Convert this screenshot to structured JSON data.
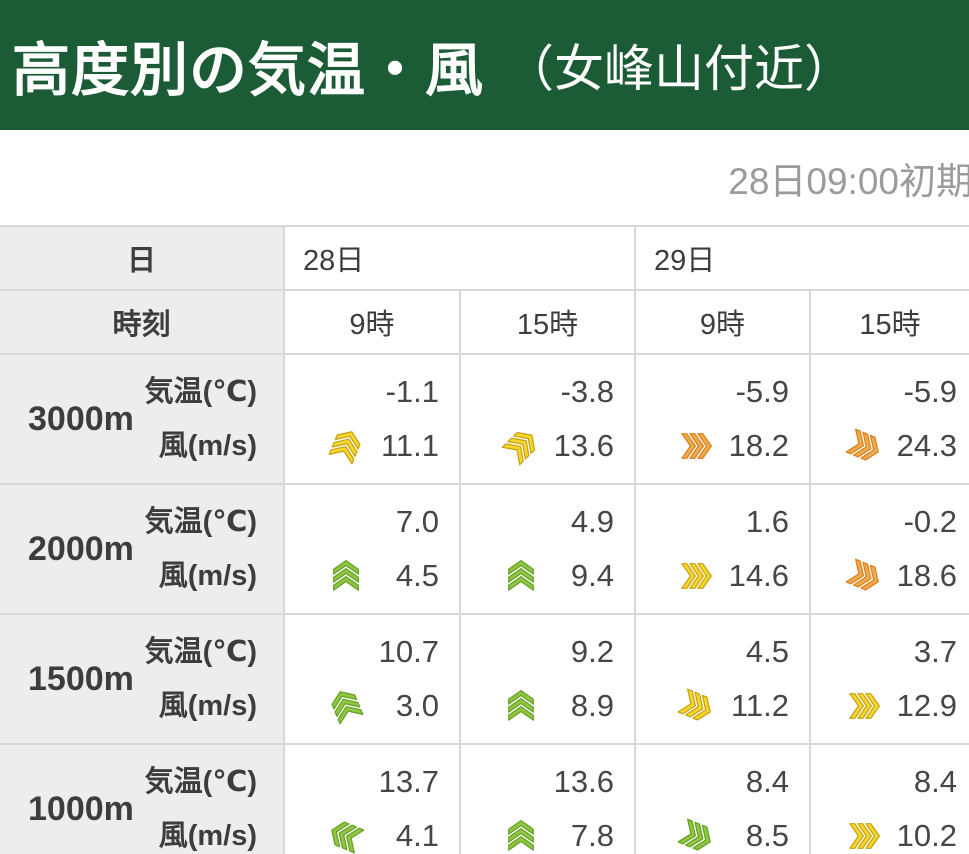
{
  "header": {
    "title": "高度別の気温・風",
    "area": "（女峰山付近）",
    "bg_color": "#1b5c36",
    "text_color": "#ffffff"
  },
  "init_time": "28日09:00初期",
  "table": {
    "day_label": "日",
    "time_label": "時刻",
    "days": [
      {
        "label": "28日"
      },
      {
        "label": "29日"
      }
    ],
    "times": [
      "9時",
      "15時",
      "9時",
      "15時"
    ],
    "temp_label": "気温(℃)",
    "wind_label": "風(m/s)",
    "rows": [
      {
        "altitude": "3000m",
        "temps": [
          "-1.1",
          "-3.8",
          "-5.9",
          "-5.9"
        ],
        "winds": [
          {
            "speed": "11.1",
            "color": "yellow",
            "dir": 22.5
          },
          {
            "speed": "13.6",
            "color": "yellow",
            "dir": 45
          },
          {
            "speed": "18.2",
            "color": "orange",
            "dir": 90
          },
          {
            "speed": "24.3",
            "color": "orange",
            "dir": 112.5
          }
        ]
      },
      {
        "altitude": "2000m",
        "temps": [
          "7.0",
          "4.9",
          "1.6",
          "-0.2"
        ],
        "winds": [
          {
            "speed": "4.5",
            "color": "green",
            "dir": 0
          },
          {
            "speed": "9.4",
            "color": "green",
            "dir": 0
          },
          {
            "speed": "14.6",
            "color": "yellow",
            "dir": 90
          },
          {
            "speed": "18.6",
            "color": "orange",
            "dir": 112.5
          }
        ]
      },
      {
        "altitude": "1500m",
        "temps": [
          "10.7",
          "9.2",
          "4.5",
          "3.7"
        ],
        "winds": [
          {
            "speed": "3.0",
            "color": "green",
            "dir": -22.5
          },
          {
            "speed": "8.9",
            "color": "green",
            "dir": 0
          },
          {
            "speed": "11.2",
            "color": "yellow",
            "dir": 112.5
          },
          {
            "speed": "12.9",
            "color": "yellow",
            "dir": 90
          }
        ]
      },
      {
        "altitude": "1000m",
        "temps": [
          "13.7",
          "13.6",
          "8.4",
          "8.4"
        ],
        "winds": [
          {
            "speed": "4.1",
            "color": "green",
            "dir": -67.5
          },
          {
            "speed": "7.8",
            "color": "green",
            "dir": 0
          },
          {
            "speed": "8.5",
            "color": "green",
            "dir": 112.5
          },
          {
            "speed": "10.2",
            "color": "yellow",
            "dir": 90
          }
        ]
      }
    ]
  },
  "wind_colors": {
    "green": {
      "fill": "#8dc63f",
      "edge": "#68a028"
    },
    "yellow": {
      "fill": "#f6d52d",
      "edge": "#c7a214"
    },
    "orange": {
      "fill": "#f2a94e",
      "edge": "#d5821f"
    }
  }
}
